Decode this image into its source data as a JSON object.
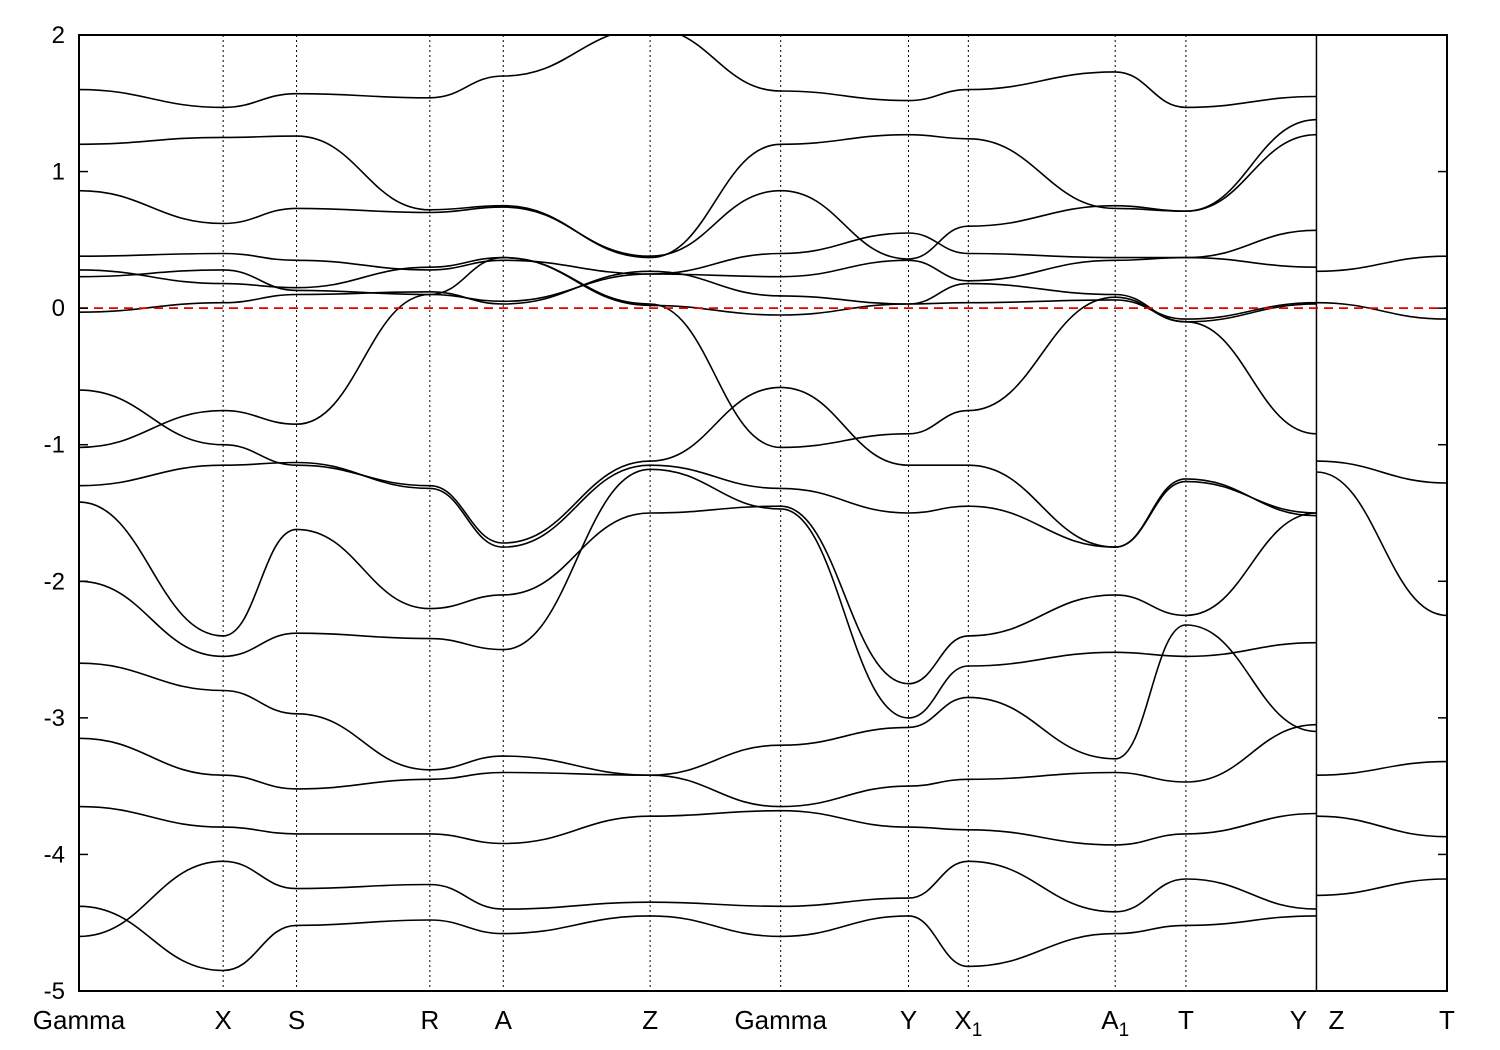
{
  "chart_data": {
    "type": "line",
    "title": "",
    "xlabel": "",
    "ylabel": "",
    "ylim": [
      -5,
      2
    ],
    "yticks": [
      -5,
      -4,
      -3,
      -2,
      -1,
      0,
      1,
      2
    ],
    "ytick_labels": [
      "-5",
      "-4",
      "-3",
      "-2",
      "-1",
      "0",
      "1",
      "2"
    ],
    "grid": "vertical dotted lines at high-symmetry points",
    "legend": "none",
    "colors": {
      "bands": "#000000",
      "fermi_level": "#e00000"
    },
    "high_symmetry_points": [
      {
        "label": "Gamma",
        "sub": "",
        "k": 0.0
      },
      {
        "label": "X",
        "sub": "",
        "k": 0.53
      },
      {
        "label": "S",
        "sub": "",
        "k": 0.8
      },
      {
        "label": "R",
        "sub": "",
        "k": 1.29
      },
      {
        "label": "A",
        "sub": "",
        "k": 1.56
      },
      {
        "label": "Z",
        "sub": "",
        "k": 2.1
      },
      {
        "label": "Gamma",
        "sub": "",
        "k": 2.58
      },
      {
        "label": "Y",
        "sub": "",
        "k": 3.05
      },
      {
        "label": "X",
        "sub": "1",
        "k": 3.27
      },
      {
        "label": "A",
        "sub": "1",
        "k": 3.81
      },
      {
        "label": "T",
        "sub": "",
        "k": 4.07
      },
      {
        "label": "Y",
        "sub": "",
        "k": 4.55
      },
      {
        "label": "Z",
        "sub": "",
        "k": 4.55
      },
      {
        "label": "T",
        "sub": "",
        "k": 5.03
      }
    ],
    "fermi_level": 0,
    "series": [
      {
        "k": [
          0.0,
          0.53,
          0.8,
          1.29,
          1.56,
          2.1,
          2.58,
          3.05,
          3.27,
          3.81,
          4.07,
          4.55
        ],
        "values": [
          -0.03,
          0.04,
          0.1,
          0.12,
          0.03,
          0.27,
          0.09,
          0.03,
          0.04,
          0.06,
          -0.08,
          0.04
        ]
      },
      {
        "k": [
          0.0,
          0.53,
          0.8,
          1.29,
          1.56,
          2.1,
          2.58,
          3.05,
          3.27,
          3.81,
          4.07,
          4.55
        ],
        "values": [
          0.23,
          0.28,
          0.13,
          0.1,
          0.05,
          0.25,
          0.23,
          0.35,
          0.2,
          0.35,
          0.37,
          0.3
        ]
      },
      {
        "k": [
          0.0,
          0.53,
          0.8,
          1.29,
          1.56,
          2.1,
          2.58,
          3.05,
          3.27,
          3.81,
          4.07,
          4.55
        ],
        "values": [
          0.28,
          0.18,
          0.15,
          0.3,
          0.37,
          0.02,
          -0.05,
          0.03,
          0.18,
          0.1,
          -0.1,
          0.03
        ]
      },
      {
        "k": [
          0.0,
          0.53,
          0.8,
          1.29,
          1.56,
          2.1,
          2.58,
          3.05,
          3.27,
          3.81,
          4.07,
          4.55
        ],
        "values": [
          0.38,
          0.4,
          0.35,
          0.28,
          0.35,
          0.25,
          0.4,
          0.55,
          0.4,
          0.37,
          0.37,
          0.57
        ]
      },
      {
        "k": [
          0.0,
          0.53,
          0.8,
          1.29,
          1.56,
          2.1,
          2.58,
          3.05,
          3.27,
          3.81,
          4.07,
          4.55
        ],
        "values": [
          0.86,
          0.62,
          0.73,
          0.7,
          0.74,
          0.38,
          0.86,
          0.36,
          0.6,
          0.75,
          0.71,
          1.27
        ]
      },
      {
        "k": [
          0.0,
          0.53,
          0.8,
          1.29,
          1.56,
          2.1,
          2.58,
          3.05,
          3.27,
          3.81,
          4.07,
          4.55
        ],
        "values": [
          1.2,
          1.25,
          1.26,
          0.72,
          0.75,
          0.37,
          1.2,
          1.27,
          1.24,
          0.73,
          0.71,
          1.38
        ]
      },
      {
        "k": [
          0.0,
          0.53,
          0.8,
          1.29,
          1.56,
          2.1,
          2.58,
          3.05,
          3.27,
          3.81,
          4.07,
          4.55
        ],
        "values": [
          1.6,
          1.47,
          1.57,
          1.54,
          1.7,
          2.05,
          1.59,
          1.52,
          1.6,
          1.73,
          1.47,
          1.55
        ]
      },
      {
        "k": [
          0.0,
          0.53,
          0.8,
          1.29,
          1.56,
          2.1,
          2.58,
          3.05,
          3.27,
          3.81,
          4.07,
          4.55
        ],
        "values": [
          -1.02,
          -0.75,
          -0.85,
          0.1,
          0.37,
          0.03,
          -1.02,
          -0.92,
          -0.75,
          0.08,
          -0.1,
          -0.92
        ]
      },
      {
        "k": [
          0.0,
          0.53,
          0.8,
          1.29,
          1.56,
          2.1,
          2.58,
          3.05,
          3.27,
          3.81,
          4.07,
          4.55
        ],
        "values": [
          -0.6,
          -1.0,
          -1.15,
          -1.3,
          -1.72,
          -1.12,
          -0.58,
          -1.15,
          -1.15,
          -1.75,
          -1.27,
          -1.5
        ]
      },
      {
        "k": [
          0.0,
          0.53,
          0.8,
          1.29,
          1.56,
          2.1,
          2.58,
          3.05,
          3.27,
          3.81,
          4.07,
          4.55
        ],
        "values": [
          -1.3,
          -1.15,
          -1.13,
          -1.32,
          -1.75,
          -1.15,
          -1.32,
          -1.5,
          -1.45,
          -1.75,
          -1.25,
          -1.52
        ]
      },
      {
        "k": [
          0.0,
          0.53,
          0.8,
          1.29,
          1.56,
          2.1,
          2.58,
          3.05,
          3.27,
          3.81,
          4.07,
          4.55
        ],
        "values": [
          -1.42,
          -2.4,
          -1.62,
          -2.2,
          -2.1,
          -1.5,
          -1.45,
          -2.75,
          -2.4,
          -2.1,
          -2.25,
          -1.5
        ]
      },
      {
        "k": [
          0.0,
          0.53,
          0.8,
          1.29,
          1.56,
          2.1,
          2.58,
          3.05,
          3.27,
          3.81,
          4.07,
          4.55
        ],
        "values": [
          -2.0,
          -2.55,
          -2.38,
          -2.42,
          -2.5,
          -1.18,
          -1.47,
          -3.0,
          -2.62,
          -2.52,
          -2.55,
          -2.45
        ]
      },
      {
        "k": [
          0.0,
          0.53,
          0.8,
          1.29,
          1.56,
          2.1,
          2.58,
          3.05,
          3.27,
          3.81,
          4.07,
          4.55
        ],
        "values": [
          -2.6,
          -2.8,
          -2.97,
          -3.38,
          -3.28,
          -3.42,
          -3.2,
          -3.07,
          -2.85,
          -3.3,
          -2.32,
          -3.1
        ]
      },
      {
        "k": [
          0.0,
          0.53,
          0.8,
          1.29,
          1.56,
          2.1,
          2.58,
          3.05,
          3.27,
          3.81,
          4.07,
          4.55
        ],
        "values": [
          -3.15,
          -3.42,
          -3.52,
          -3.45,
          -3.4,
          -3.42,
          -3.65,
          -3.5,
          -3.45,
          -3.4,
          -3.47,
          -3.05
        ]
      },
      {
        "k": [
          0.0,
          0.53,
          0.8,
          1.29,
          1.56,
          2.1,
          2.58,
          3.05,
          3.27,
          3.81,
          4.07,
          4.55
        ],
        "values": [
          -3.65,
          -3.8,
          -3.85,
          -3.85,
          -3.92,
          -3.72,
          -3.68,
          -3.8,
          -3.82,
          -3.93,
          -3.85,
          -3.7
        ]
      },
      {
        "k": [
          0.0,
          0.53,
          0.8,
          1.29,
          1.56,
          2.1,
          2.58,
          3.05,
          3.27,
          3.81,
          4.07,
          4.55
        ],
        "values": [
          -4.6,
          -4.05,
          -4.25,
          -4.22,
          -4.4,
          -4.35,
          -4.38,
          -4.32,
          -4.05,
          -4.42,
          -4.18,
          -4.4
        ]
      },
      {
        "k": [
          0.0,
          0.53,
          0.8,
          1.29,
          1.56,
          2.1,
          2.58,
          3.05,
          3.27,
          3.81,
          4.07,
          4.55
        ],
        "values": [
          -4.38,
          -4.85,
          -4.52,
          -4.48,
          -4.58,
          -4.45,
          -4.6,
          -4.45,
          -4.82,
          -4.58,
          -4.52,
          -4.45
        ]
      },
      {
        "k": [
          4.55,
          5.03
        ],
        "values": [
          0.04,
          -0.08
        ]
      },
      {
        "k": [
          4.55,
          5.03
        ],
        "values": [
          0.27,
          0.38
        ]
      },
      {
        "k": [
          4.55,
          5.03
        ],
        "values": [
          -1.12,
          -1.28
        ]
      },
      {
        "k": [
          4.55,
          5.03
        ],
        "values": [
          -1.2,
          -2.25
        ]
      },
      {
        "k": [
          4.55,
          5.03
        ],
        "values": [
          -3.42,
          -3.32
        ]
      },
      {
        "k": [
          4.55,
          5.03
        ],
        "values": [
          -3.72,
          -3.87
        ]
      },
      {
        "k": [
          4.55,
          5.03
        ],
        "values": [
          -4.3,
          -4.18
        ]
      }
    ]
  }
}
